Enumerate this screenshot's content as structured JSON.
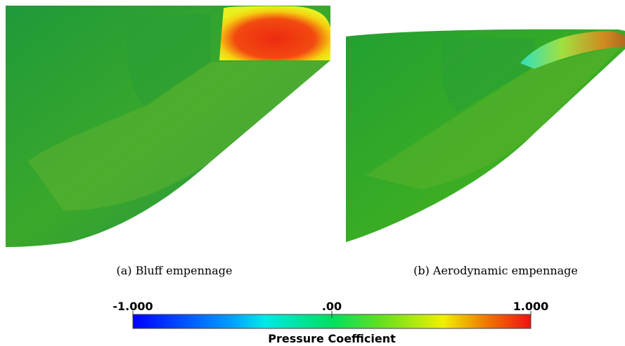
{
  "panels": [
    {
      "caption": "(a) Bluff empennage"
    },
    {
      "caption": "(b) Aerodynamic empennage"
    }
  ],
  "colorbar": {
    "title": "Pressure Coefficient",
    "lim": [
      -1,
      1
    ],
    "ticks": [
      {
        "value": -1,
        "label": "-1.000"
      },
      {
        "value": 0,
        "label": ".00"
      },
      {
        "value": 1,
        "label": "1.000"
      }
    ]
  }
}
